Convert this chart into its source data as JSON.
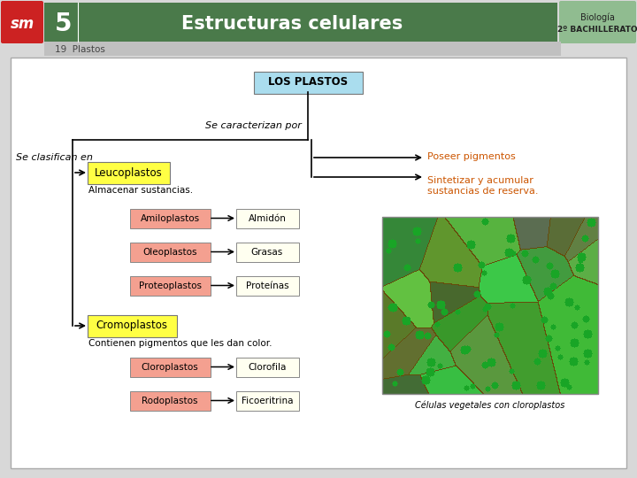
{
  "title": "Estructuras celulares",
  "unit_num": "5",
  "subtitle": "19  Plastos",
  "sm_color": "#cc2222",
  "header_green": "#4a7a4a",
  "header_light_green": "#90bc90",
  "sub_header_gray": "#c0c0c0",
  "box_light_blue": "#aaddee",
  "box_yellow": "#ffff44",
  "box_pink": "#f4a090",
  "box_light_yellow": "#fffff0",
  "orange_text": "#cc5500",
  "main_node": "LOS PLASTOS",
  "classify_label": "Se clasifican en",
  "char_label": "Se caracterizan por",
  "char1": "Poseer pigmentos",
  "char2": "Sintetizar y acumular\nsustancias de reserva.",
  "leucoplastos": "Leucoplastos",
  "leuco_sub": "Almacenar sustancias.",
  "cromo": "Cromoplastos",
  "cromo_sub": "Contienen pigmentos que les dan color.",
  "sub_leuco": [
    "Amiloplastos",
    "Oleoplastos",
    "Proteoplastos"
  ],
  "sub_leuco_result": [
    "Almidón",
    "Grasas",
    "Proteínas"
  ],
  "sub_cromo": [
    "Cloroplastos",
    "Rodoplastos"
  ],
  "sub_cromo_result": [
    "Clorofila",
    "Ficoeritrina"
  ],
  "img_caption": "Células vegetales con cloroplastos",
  "figsize": [
    7.2,
    5.4
  ],
  "dpi": 100
}
